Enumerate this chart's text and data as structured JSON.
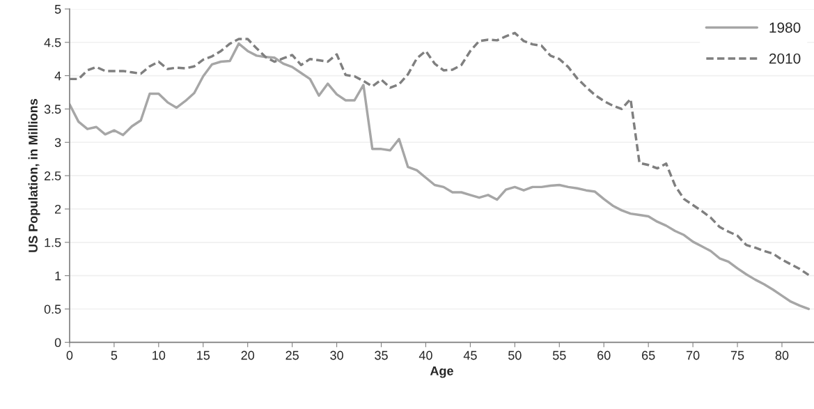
{
  "chart_data": {
    "type": "line",
    "xlabel": "Age",
    "ylabel": "US Population, in Millions",
    "x": [
      0,
      1,
      2,
      3,
      4,
      5,
      6,
      7,
      8,
      9,
      10,
      11,
      12,
      13,
      14,
      15,
      16,
      17,
      18,
      19,
      20,
      21,
      22,
      23,
      24,
      25,
      26,
      27,
      28,
      29,
      30,
      31,
      32,
      33,
      34,
      35,
      36,
      37,
      38,
      39,
      40,
      41,
      42,
      43,
      44,
      45,
      46,
      47,
      48,
      49,
      50,
      51,
      52,
      53,
      54,
      55,
      56,
      57,
      58,
      59,
      60,
      61,
      62,
      63,
      64,
      65,
      66,
      67,
      68,
      69,
      70,
      71,
      72,
      73,
      74,
      75,
      76,
      77,
      78,
      79,
      80,
      81,
      82,
      83
    ],
    "series": [
      {
        "name": "1980",
        "color": "#a6a6a6",
        "line_style": "solid",
        "values": [
          3.57,
          3.31,
          3.2,
          3.23,
          3.12,
          3.18,
          3.11,
          3.24,
          3.33,
          3.73,
          3.73,
          3.6,
          3.52,
          3.62,
          3.74,
          3.99,
          4.17,
          4.21,
          4.22,
          4.48,
          4.37,
          4.3,
          4.28,
          4.27,
          4.18,
          4.13,
          4.04,
          3.95,
          3.7,
          3.88,
          3.72,
          3.63,
          3.63,
          3.86,
          2.9,
          2.9,
          2.88,
          3.05,
          2.63,
          2.58,
          2.47,
          2.36,
          2.33,
          2.25,
          2.25,
          2.21,
          2.17,
          2.21,
          2.14,
          2.29,
          2.33,
          2.28,
          2.33,
          2.33,
          2.35,
          2.36,
          2.33,
          2.31,
          2.28,
          2.26,
          2.15,
          2.05,
          1.98,
          1.93,
          1.91,
          1.89,
          1.81,
          1.75,
          1.67,
          1.61,
          1.51,
          1.44,
          1.37,
          1.26,
          1.21,
          1.11,
          1.02,
          0.94,
          0.87,
          0.79,
          0.7,
          0.61,
          0.55,
          0.5
        ]
      },
      {
        "name": "2010",
        "color": "#7f7f7f",
        "line_style": "dashed",
        "values": [
          3.95,
          3.95,
          4.08,
          4.13,
          4.07,
          4.07,
          4.07,
          4.05,
          4.03,
          4.14,
          4.21,
          4.1,
          4.12,
          4.11,
          4.14,
          4.24,
          4.29,
          4.37,
          4.48,
          4.55,
          4.55,
          4.41,
          4.28,
          4.21,
          4.26,
          4.31,
          4.16,
          4.25,
          4.23,
          4.21,
          4.32,
          4.01,
          3.99,
          3.92,
          3.84,
          3.94,
          3.82,
          3.87,
          4.02,
          4.26,
          4.37,
          4.18,
          4.08,
          4.09,
          4.16,
          4.37,
          4.52,
          4.54,
          4.53,
          4.59,
          4.64,
          4.52,
          4.47,
          4.45,
          4.3,
          4.25,
          4.13,
          3.96,
          3.83,
          3.71,
          3.62,
          3.55,
          3.5,
          3.65,
          2.69,
          2.66,
          2.61,
          2.68,
          2.35,
          2.15,
          2.06,
          1.97,
          1.87,
          1.73,
          1.66,
          1.6,
          1.46,
          1.42,
          1.37,
          1.33,
          1.24,
          1.17,
          1.1,
          1.01
        ]
      }
    ],
    "xlim": [
      0,
      83.6
    ],
    "xticks": [
      0,
      5,
      10,
      15,
      20,
      25,
      30,
      35,
      40,
      45,
      50,
      55,
      60,
      65,
      70,
      75,
      80
    ],
    "ylim": [
      0,
      5
    ],
    "yticks": [
      0,
      0.5,
      1,
      1.5,
      2,
      2.5,
      3,
      3.5,
      4,
      4.5,
      5
    ],
    "grid": "y",
    "legend": "top right"
  }
}
